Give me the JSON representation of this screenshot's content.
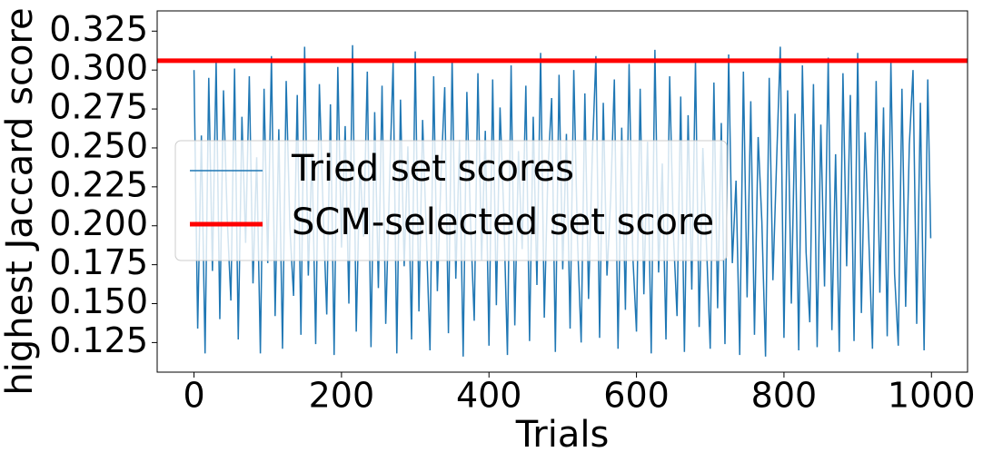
{
  "chart_data": {
    "type": "line",
    "xlabel": "Trials",
    "ylabel": "highest Jaccard score",
    "xlim": [
      -49.95,
      1048.95
    ],
    "ylim": [
      0.106,
      0.338
    ],
    "xticks": [
      0,
      200,
      400,
      600,
      800,
      1000
    ],
    "yticks": [
      0.125,
      {
        "value": 0.15,
        "label": "0.150"
      },
      0.175,
      {
        "value": 0.2,
        "label": "0.200"
      },
      0.225,
      {
        "value": 0.25,
        "label": "0.250"
      },
      0.275,
      {
        "value": 0.3,
        "label": "0.300"
      },
      0.325
    ],
    "legend": "center-left",
    "x": [
      0,
      5,
      10,
      15,
      20,
      25,
      30,
      35,
      40,
      45,
      50,
      55,
      60,
      65,
      70,
      75,
      80,
      85,
      90,
      95,
      100,
      105,
      110,
      115,
      120,
      125,
      130,
      135,
      140,
      145,
      150,
      155,
      160,
      165,
      170,
      175,
      180,
      185,
      190,
      195,
      200,
      205,
      210,
      215,
      220,
      225,
      230,
      235,
      240,
      245,
      250,
      255,
      260,
      265,
      270,
      275,
      280,
      285,
      290,
      295,
      300,
      305,
      310,
      315,
      320,
      325,
      330,
      335,
      340,
      345,
      350,
      355,
      360,
      365,
      370,
      375,
      380,
      385,
      390,
      395,
      400,
      405,
      410,
      415,
      420,
      425,
      430,
      435,
      440,
      445,
      450,
      455,
      460,
      465,
      470,
      475,
      480,
      485,
      490,
      495,
      500,
      505,
      510,
      515,
      520,
      525,
      530,
      535,
      540,
      545,
      550,
      555,
      560,
      565,
      570,
      575,
      580,
      585,
      590,
      595,
      600,
      605,
      610,
      615,
      620,
      625,
      630,
      635,
      640,
      645,
      650,
      655,
      660,
      665,
      670,
      675,
      680,
      685,
      690,
      695,
      700,
      705,
      710,
      715,
      720,
      725,
      730,
      735,
      740,
      745,
      750,
      755,
      760,
      765,
      770,
      775,
      780,
      785,
      790,
      795,
      800,
      805,
      810,
      815,
      820,
      825,
      830,
      835,
      840,
      845,
      850,
      855,
      860,
      865,
      870,
      875,
      880,
      885,
      890,
      895,
      900,
      905,
      910,
      915,
      920,
      925,
      930,
      935,
      940,
      945,
      950,
      955,
      960,
      965,
      970,
      975,
      980,
      985,
      990,
      995,
      999
    ],
    "series": [
      {
        "name": "Tried set scores",
        "color": "#1f77b4",
        "values": [
          0.3,
          0.134,
          0.258,
          0.118,
          0.295,
          0.171,
          0.306,
          0.14,
          0.287,
          0.205,
          0.152,
          0.301,
          0.127,
          0.27,
          0.189,
          0.296,
          0.163,
          0.244,
          0.118,
          0.288,
          0.176,
          0.309,
          0.142,
          0.262,
          0.121,
          0.293,
          0.199,
          0.155,
          0.284,
          0.13,
          0.315,
          0.168,
          0.247,
          0.124,
          0.291,
          0.211,
          0.143,
          0.278,
          0.117,
          0.302,
          0.186,
          0.264,
          0.15,
          0.316,
          0.132,
          0.24,
          0.193,
          0.299,
          0.122,
          0.273,
          0.16,
          0.29,
          0.137,
          0.226,
          0.305,
          0.118,
          0.281,
          0.174,
          0.251,
          0.127,
          0.312,
          0.145,
          0.268,
          0.195,
          0.12,
          0.296,
          0.158,
          0.233,
          0.289,
          0.131,
          0.307,
          0.166,
          0.255,
          0.116,
          0.286,
          0.202,
          0.139,
          0.298,
          0.178,
          0.261,
          0.123,
          0.294,
          0.149,
          0.276,
          0.209,
          0.117,
          0.303,
          0.136,
          0.248,
          0.185,
          0.29,
          0.126,
          0.27,
          0.162,
          0.311,
          0.141,
          0.236,
          0.282,
          0.119,
          0.297,
          0.172,
          0.259,
          0.134,
          0.3,
          0.191,
          0.125,
          0.285,
          0.153,
          0.244,
          0.309,
          0.128,
          0.279,
          0.168,
          0.217,
          0.294,
          0.121,
          0.263,
          0.146,
          0.304,
          0.181,
          0.132,
          0.288,
          0.156,
          0.254,
          0.118,
          0.313,
          0.17,
          0.24,
          0.127,
          0.296,
          0.196,
          0.142,
          0.283,
          0.119,
          0.271,
          0.159,
          0.306,
          0.135,
          0.25,
          0.187,
          0.121,
          0.292,
          0.147,
          0.266,
          0.124,
          0.31,
          0.176,
          0.229,
          0.117,
          0.299,
          0.154,
          0.28,
          0.13,
          0.257,
          0.203,
          0.116,
          0.295,
          0.165,
          0.241,
          0.315,
          0.128,
          0.287,
          0.15,
          0.272,
          0.12,
          0.303,
          0.183,
          0.138,
          0.291,
          0.122,
          0.265,
          0.161,
          0.308,
          0.133,
          0.246,
          0.119,
          0.298,
          0.174,
          0.284,
          0.126,
          0.311,
          0.144,
          0.26,
          0.192,
          0.121,
          0.293,
          0.157,
          0.276,
          0.129,
          0.305,
          0.169,
          0.123,
          0.288,
          0.148,
          0.252,
          0.3,
          0.137,
          0.279,
          0.12,
          0.294,
          0.192
        ]
      }
    ],
    "hline": {
      "name": "SCM-selected set score",
      "color": "#ff0000",
      "value": 0.306
    }
  }
}
